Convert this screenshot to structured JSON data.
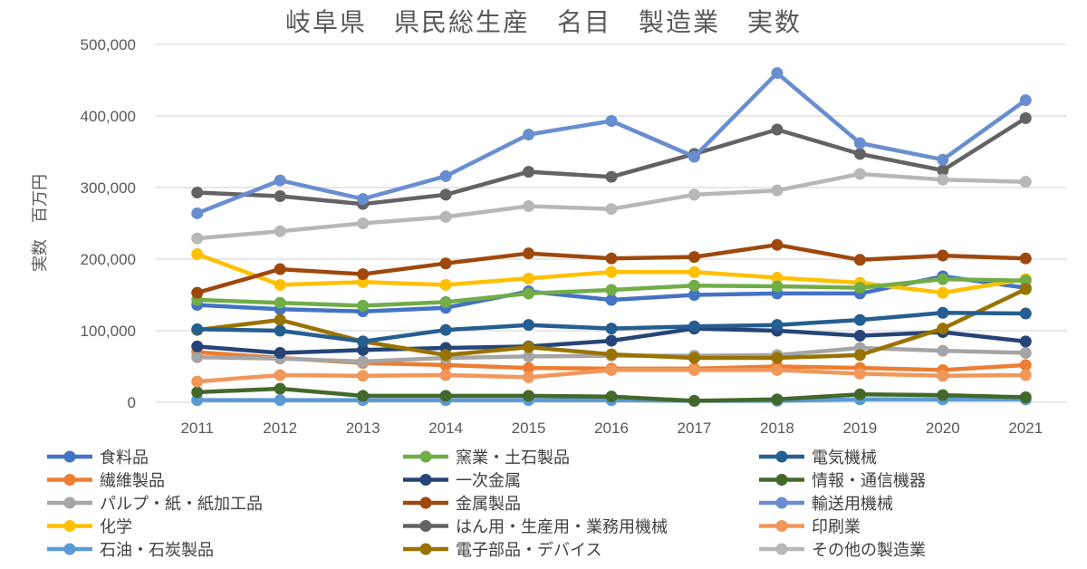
{
  "chart_data": {
    "type": "line",
    "title": "岐阜県　県民総生産　名目　製造業　実数",
    "xlabel": "",
    "ylabel": "実数　百万円",
    "x": [
      "2011",
      "2012",
      "2013",
      "2014",
      "2015",
      "2016",
      "2017",
      "2018",
      "2019",
      "2020",
      "2021"
    ],
    "ylim": [
      0,
      500000
    ],
    "yticks": [
      "0",
      "100,000",
      "200,000",
      "300,000",
      "400,000",
      "500,000"
    ],
    "grid": true,
    "legend_position": "bottom",
    "series": [
      {
        "name": "食料品",
        "color": "#4472c4",
        "values": [
          136000,
          130000,
          127000,
          132000,
          155000,
          143000,
          150000,
          152000,
          152000,
          176000,
          160000
        ]
      },
      {
        "name": "繊維製品",
        "color": "#ed7d31",
        "values": [
          70000,
          62000,
          55000,
          52000,
          48000,
          47000,
          47000,
          50000,
          48000,
          45000,
          52000
        ]
      },
      {
        "name": "パルプ・紙・紙加工品",
        "color": "#a5a5a5",
        "values": [
          63000,
          61000,
          57000,
          62000,
          64000,
          65000,
          65000,
          66000,
          76000,
          72000,
          69000
        ]
      },
      {
        "name": "化学",
        "color": "#ffc000",
        "values": [
          207000,
          164000,
          168000,
          164000,
          173000,
          182000,
          182000,
          174000,
          167000,
          153000,
          172000
        ]
      },
      {
        "name": "石油・石炭製品",
        "color": "#5b9bd5",
        "values": [
          3000,
          3000,
          3000,
          3000,
          3000,
          3000,
          2000,
          2000,
          4000,
          4000,
          4000
        ]
      },
      {
        "name": "窯業・土石製品",
        "color": "#70ad47",
        "values": [
          143000,
          139000,
          135000,
          140000,
          152000,
          157000,
          163000,
          162000,
          160000,
          172000,
          170000
        ]
      },
      {
        "name": "一次金属",
        "color": "#264478",
        "values": [
          78000,
          69000,
          73000,
          76000,
          78000,
          86000,
          103000,
          100000,
          93000,
          98000,
          85000
        ]
      },
      {
        "name": "金属製品",
        "color": "#9e480e",
        "values": [
          153000,
          186000,
          179000,
          194000,
          208000,
          201000,
          203000,
          220000,
          199000,
          205000,
          201000
        ]
      },
      {
        "name": "はん用・生産用・業務用機械",
        "color": "#636363",
        "values": [
          293000,
          288000,
          277000,
          290000,
          322000,
          315000,
          347000,
          381000,
          347000,
          324000,
          397000
        ]
      },
      {
        "name": "電子部品・デバイス",
        "color": "#997300",
        "values": [
          101000,
          115000,
          85000,
          66000,
          77000,
          67000,
          62000,
          62000,
          66000,
          103000,
          158000
        ]
      },
      {
        "name": "電気機械",
        "color": "#255e91",
        "values": [
          102000,
          100000,
          85000,
          101000,
          108000,
          103000,
          106000,
          108000,
          115000,
          125000,
          124000
        ]
      },
      {
        "name": "情報・通信機器",
        "color": "#43682b",
        "values": [
          14000,
          19000,
          9000,
          9000,
          9000,
          8000,
          2000,
          4000,
          11000,
          10000,
          7000
        ]
      },
      {
        "name": "輸送用機械",
        "color": "#698ed0",
        "values": [
          264000,
          310000,
          284000,
          316000,
          374000,
          393000,
          343000,
          460000,
          362000,
          339000,
          422000
        ]
      },
      {
        "name": "印刷業",
        "color": "#f1975a",
        "values": [
          29000,
          38000,
          37000,
          38000,
          35000,
          45000,
          45000,
          45000,
          40000,
          37000,
          38000
        ]
      },
      {
        "name": "その他の製造業",
        "color": "#b7b7b7",
        "values": [
          229000,
          239000,
          250000,
          259000,
          274000,
          270000,
          290000,
          296000,
          319000,
          311000,
          308000
        ]
      }
    ]
  }
}
